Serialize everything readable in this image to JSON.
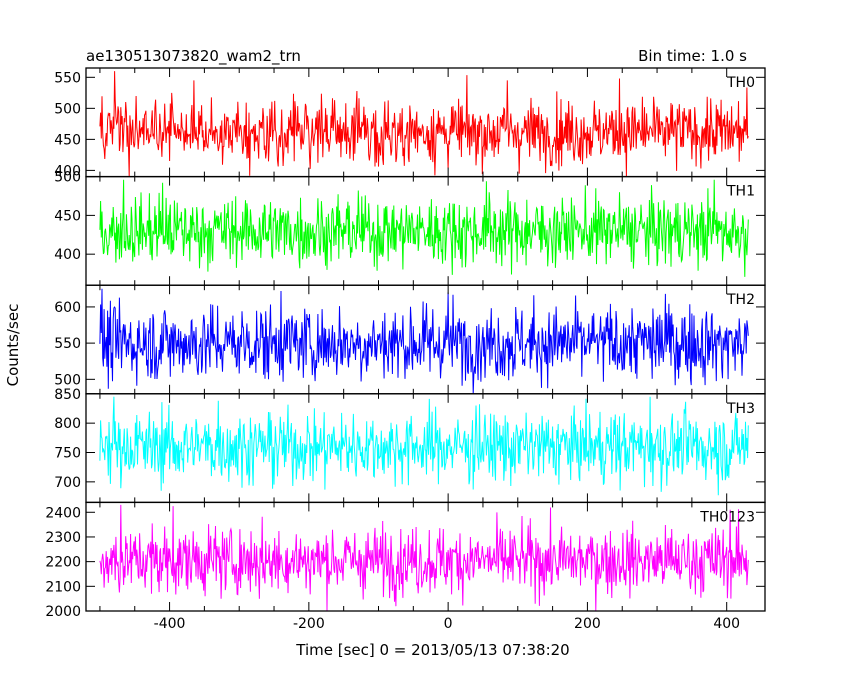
{
  "header": {
    "title": "ae130513073820_wam2_trn",
    "bin_time": "Bin time: 1.0 s"
  },
  "chart_data": {
    "type": "line",
    "title": "ae130513073820_wam2_trn",
    "xlabel": "Time [sec] 0 = 2013/05/13 07:38:20",
    "ylabel": "Counts/sec",
    "xlim": [
      -520,
      455
    ],
    "x_range": [
      -500,
      431
    ],
    "bin_time_s": 1.0,
    "x_ticks": [
      -400,
      -200,
      0,
      200,
      400
    ],
    "grid": false,
    "panels": [
      {
        "name": "TH0",
        "color": "#ff0000",
        "ylim": [
          390,
          565
        ],
        "yticks": [
          400,
          450,
          500,
          550
        ],
        "mean": 462,
        "amplitude": 26,
        "peaks": [
          [
            -479,
            560
          ],
          [
            -365,
            545
          ],
          [
            85,
            545
          ],
          [
            246,
            548
          ]
        ]
      },
      {
        "name": "TH1",
        "color": "#00ff00",
        "ylim": [
          360,
          500
        ],
        "yticks": [
          400,
          450,
          500
        ],
        "mean": 430,
        "amplitude": 22,
        "peaks": [
          [
            -466,
            496
          ],
          [
            -410,
            492
          ],
          [
            55,
            494
          ],
          [
            382,
            496
          ]
        ]
      },
      {
        "name": "TH2",
        "color": "#0000ff",
        "ylim": [
          480,
          630
        ],
        "yticks": [
          500,
          550,
          600
        ],
        "mean": 550,
        "amplitude": 26,
        "peaks": [
          [
            -497,
            625
          ],
          [
            -240,
            622
          ],
          [
            0,
            620
          ],
          [
            312,
            618
          ]
        ]
      },
      {
        "name": "TH3",
        "color": "#00ffff",
        "ylim": [
          665,
          850
        ],
        "yticks": [
          700,
          750,
          800,
          850
        ],
        "mean": 760,
        "amplitude": 30,
        "peaks": [
          [
            -480,
            845
          ],
          [
            -330,
            838
          ],
          [
            40,
            830
          ],
          [
            290,
            845
          ]
        ]
      },
      {
        "name": "TH0123",
        "color": "#ff00ff",
        "ylim": [
          2000,
          2440
        ],
        "yticks": [
          2000,
          2100,
          2200,
          2300,
          2400
        ],
        "mean": 2205,
        "amplitude": 68,
        "peaks": [
          [
            -470,
            2430
          ],
          [
            -395,
            2425
          ],
          [
            405,
            2410
          ]
        ]
      }
    ]
  }
}
